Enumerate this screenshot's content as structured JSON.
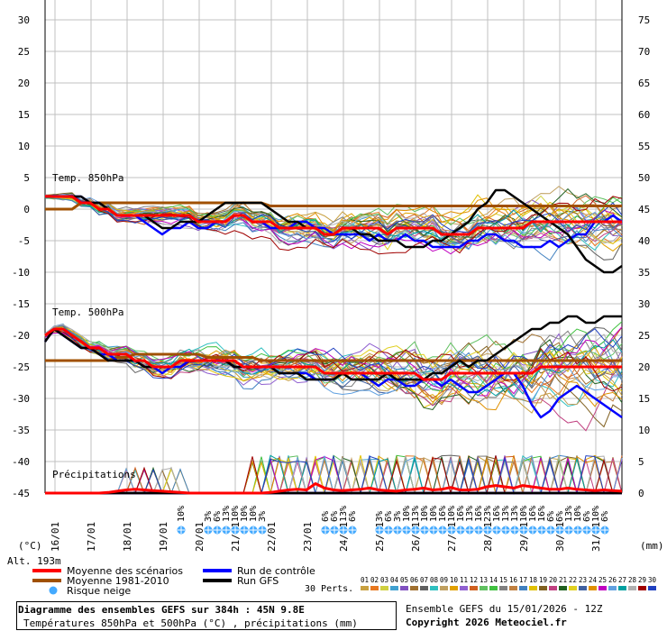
{
  "chart_data": {
    "type": "line",
    "title": "Diagramme des ensembles GEFS sur 384h : 45N 9.8E",
    "subtitle": "Températures 850hPa et 500hPa (°C) , précipitations (mm)",
    "ensemble_label": "Ensemble GEFS du 15/01/2026 - 12Z",
    "copyright": "Copyright 2026 Meteociel.fr",
    "altitude": "Alt. 193m",
    "left_unit": "(°C)",
    "right_unit": "(mm)",
    "left_ticks": [
      "30",
      "25",
      "20",
      "15",
      "10",
      "5",
      "0",
      "-5",
      "-10",
      "-15",
      "-20",
      "-25",
      "-30",
      "-35",
      "-40",
      "-45"
    ],
    "right_ticks": [
      "75",
      "70",
      "65",
      "60",
      "55",
      "50",
      "45",
      "40",
      "35",
      "30",
      "25",
      "20",
      "15",
      "10",
      "5",
      "0"
    ],
    "x_ticks": [
      "16/01",
      "17/01",
      "18/01",
      "19/01",
      "20/01",
      "21/01",
      "22/01",
      "23/01",
      "24/01",
      "25/01",
      "26/01",
      "27/01",
      "28/01",
      "29/01",
      "30/01",
      "31/01"
    ],
    "section_labels": {
      "t850": "Temp. 850hPa",
      "t500": "Temp. 500hPa",
      "precip": "Précipitations"
    },
    "ylim_left": [
      -45,
      30
    ],
    "ylim_right": [
      0,
      75
    ],
    "x_range_hours": [
      0,
      384
    ],
    "colors": {
      "mean": "#ff0000",
      "climo": "#a05000",
      "control": "#0000ff",
      "gfs": "#000000",
      "snow": "#44aaff",
      "grid": "#c0c0c0"
    },
    "series": [
      {
        "name": "Moyenne des scénarios",
        "group": "t850",
        "values": [
          2,
          2,
          2,
          2,
          1,
          1,
          0,
          0,
          -1,
          -1,
          -1,
          -1,
          -1,
          -1,
          -1,
          -1,
          -1,
          -2,
          -2,
          -2,
          -2,
          -1,
          -1,
          -2,
          -2,
          -2,
          -3,
          -3,
          -3,
          -3,
          -3,
          -4,
          -4,
          -3,
          -3,
          -3,
          -3,
          -3,
          -4,
          -3,
          -3,
          -3,
          -3,
          -3,
          -4,
          -4,
          -4,
          -4,
          -3,
          -3,
          -3,
          -3,
          -3,
          -3,
          -2,
          -2,
          -2,
          -2,
          -2,
          -2,
          -2,
          -2,
          -2,
          -2,
          -2
        ]
      },
      {
        "name": "Moyenne 1981-2010",
        "group": "t850",
        "values": [
          0,
          0,
          0,
          0,
          1,
          1,
          1,
          1,
          1,
          1,
          1,
          1,
          1,
          1,
          1,
          1,
          1,
          1,
          1,
          1,
          1,
          1,
          1,
          1,
          1,
          0.5,
          0.5,
          0.5,
          0.5,
          0.5,
          0.5,
          0.5,
          0.5,
          0.5,
          0.5,
          0.5,
          0.5,
          0.5,
          0.5,
          0.5,
          0.5,
          0.5,
          0.5,
          0.5,
          0.5,
          0.5,
          0.5,
          0.5,
          0.5,
          0.5,
          0.5,
          0.5,
          0.5,
          0.5,
          0.5,
          0.5,
          0.5,
          0.5,
          0.5,
          0.5,
          0.5,
          0.5,
          0.5,
          0.5,
          0.5
        ]
      },
      {
        "name": "Run de contrôle",
        "group": "t850",
        "values": [
          2,
          2,
          2,
          2,
          2,
          1,
          1,
          0,
          -1,
          -1,
          -1,
          -2,
          -3,
          -4,
          -3,
          -3,
          -2,
          -3,
          -3,
          -2,
          -2,
          -1,
          -1,
          -2,
          -2,
          -3,
          -3,
          -3,
          -2,
          -2,
          -3,
          -3,
          -4,
          -4,
          -4,
          -4,
          -5,
          -4,
          -5,
          -5,
          -4,
          -5,
          -5,
          -6,
          -6,
          -6,
          -6,
          -5,
          -5,
          -4,
          -4,
          -5,
          -5,
          -6,
          -6,
          -6,
          -5,
          -6,
          -5,
          -4,
          -4,
          -2,
          -2,
          -1,
          -2
        ]
      },
      {
        "name": "Run GFS",
        "group": "t850",
        "values": [
          2,
          2,
          2,
          2,
          2,
          1,
          1,
          0,
          -1,
          -1,
          -1,
          -1,
          -2,
          -3,
          -3,
          -2,
          -2,
          -2,
          -1,
          0,
          1,
          1,
          1,
          1,
          1,
          0,
          -1,
          -2,
          -2,
          -3,
          -3,
          -4,
          -4,
          -3,
          -3,
          -4,
          -4,
          -5,
          -5,
          -5,
          -6,
          -6,
          -6,
          -5,
          -5,
          -4,
          -3,
          -2,
          0,
          1,
          3,
          3,
          2,
          1,
          0,
          -1,
          -2,
          -3,
          -4,
          -6,
          -8,
          -9,
          -10,
          -10,
          -9
        ]
      },
      {
        "name": "Moyenne des scénarios",
        "group": "t500",
        "values": [
          -20,
          -19,
          -19,
          -20,
          -21,
          -22,
          -22,
          -23,
          -23,
          -23,
          -24,
          -24,
          -25,
          -25,
          -25,
          -24,
          -24,
          -24,
          -24,
          -24,
          -24,
          -24,
          -25,
          -25,
          -25,
          -25,
          -25,
          -25,
          -25,
          -25,
          -25,
          -26,
          -26,
          -26,
          -26,
          -26,
          -26,
          -26,
          -26,
          -26,
          -26,
          -26,
          -27,
          -27,
          -27,
          -26,
          -26,
          -26,
          -26,
          -26,
          -26,
          -26,
          -26,
          -26,
          -26,
          -25,
          -25,
          -25,
          -25,
          -25,
          -25,
          -25,
          -25,
          -25,
          -25
        ]
      },
      {
        "name": "Moyenne 1981-2010",
        "group": "t500",
        "values": [
          -24,
          -24,
          -24,
          -24,
          -24,
          -24,
          -24,
          -24,
          -23.5,
          -23.5,
          -23,
          -23,
          -23,
          -23,
          -23,
          -23,
          -23,
          -23,
          -23.5,
          -23.5,
          -23.5,
          -23.5,
          -23.5,
          -23.5,
          -24,
          -24,
          -24,
          -24,
          -24,
          -24,
          -24,
          -24,
          -24,
          -24,
          -24,
          -24,
          -24,
          -24,
          -24,
          -24,
          -24,
          -24,
          -24,
          -24,
          -24,
          -24,
          -24,
          -24,
          -24,
          -24,
          -24,
          -24,
          -24,
          -24,
          -24,
          -24,
          -24,
          -24,
          -24,
          -24,
          -24,
          -24,
          -24,
          -24,
          -24
        ]
      },
      {
        "name": "Run de contrôle",
        "group": "t500",
        "values": [
          -21,
          -19,
          -20,
          -21,
          -22,
          -22,
          -23,
          -23,
          -24,
          -24,
          -24,
          -25,
          -25,
          -26,
          -25,
          -25,
          -24,
          -24,
          -24,
          -24,
          -24,
          -25,
          -25,
          -25,
          -25,
          -25,
          -26,
          -26,
          -26,
          -26,
          -27,
          -27,
          -27,
          -26,
          -26,
          -26,
          -27,
          -28,
          -27,
          -27,
          -28,
          -28,
          -27,
          -27,
          -28,
          -27,
          -28,
          -29,
          -29,
          -28,
          -27,
          -26,
          -26,
          -28,
          -31,
          -33,
          -32,
          -30,
          -29,
          -28,
          -29,
          -30,
          -31,
          -32,
          -33
        ]
      },
      {
        "name": "Run GFS",
        "group": "t500",
        "values": [
          -21,
          -19,
          -20,
          -21,
          -22,
          -22,
          -23,
          -24,
          -24,
          -24,
          -24,
          -25,
          -25,
          -25,
          -25,
          -24,
          -24,
          -24,
          -24,
          -24,
          -24,
          -25,
          -25,
          -25,
          -25,
          -25,
          -26,
          -26,
          -26,
          -27,
          -27,
          -27,
          -27,
          -26,
          -27,
          -27,
          -27,
          -27,
          -26,
          -27,
          -27,
          -27,
          -27,
          -26,
          -26,
          -25,
          -24,
          -25,
          -24,
          -24,
          -23,
          -22,
          -21,
          -20,
          -19,
          -19,
          -18,
          -18,
          -17,
          -17,
          -18,
          -18,
          -17,
          -17,
          -17
        ]
      },
      {
        "name": "Moyenne des scénarios",
        "group": "precip",
        "values": [
          0,
          0,
          0,
          0,
          0,
          0,
          0,
          0.1,
          0.3,
          0.5,
          0.6,
          0.5,
          0.4,
          0.3,
          0.2,
          0.1,
          0,
          0,
          0,
          0,
          0,
          0,
          0,
          0,
          0,
          0.1,
          0.3,
          0.5,
          0.6,
          0.5,
          1.5,
          0.8,
          0.5,
          0.4,
          0.5,
          0.6,
          0.8,
          0.5,
          0.4,
          0.3,
          0.5,
          0.6,
          0.8,
          0.5,
          0.6,
          0.9,
          0.5,
          0.5,
          0.6,
          1,
          1.2,
          1,
          0.8,
          1.2,
          1,
          0.8,
          0.6,
          0.6,
          0.8,
          0.6,
          0.5,
          0.4,
          0.5,
          0.4,
          0.3
        ]
      },
      {
        "name": "Moyenne 1981-2010",
        "group": "precip",
        "values": [
          0,
          0,
          0,
          0,
          0,
          0,
          0,
          0,
          0,
          0,
          0,
          0,
          0,
          0,
          0,
          0,
          0,
          0,
          0,
          0,
          0,
          0,
          0,
          0,
          0,
          0,
          0,
          0,
          0,
          0,
          0,
          0,
          0,
          0,
          0,
          0,
          0,
          0,
          0,
          0,
          0,
          0,
          0,
          0,
          0,
          0,
          0,
          0,
          0,
          0,
          0,
          0,
          0,
          0,
          0,
          0,
          0,
          0,
          0,
          0,
          0,
          0,
          0,
          0,
          0
        ]
      },
      {
        "name": "Run de contrôle",
        "group": "precip",
        "values": [
          0,
          0,
          0,
          0,
          0,
          0,
          0,
          0,
          0,
          0,
          0,
          0,
          0,
          0,
          0,
          0,
          0,
          0,
          0,
          0,
          0,
          0,
          0,
          0,
          0,
          0,
          0,
          0,
          0,
          0,
          0,
          0,
          0,
          0,
          0,
          0,
          0,
          0,
          0,
          0,
          0,
          0,
          0,
          0,
          0,
          0,
          0,
          0,
          0,
          0,
          0,
          0,
          0,
          0,
          0,
          0,
          0,
          0,
          0,
          0,
          0,
          0,
          0,
          0,
          0
        ]
      },
      {
        "name": "Run GFS",
        "group": "precip",
        "values": [
          0,
          0,
          0,
          0,
          0,
          0,
          0,
          0,
          0,
          0,
          0,
          0,
          0,
          0,
          0,
          0,
          0,
          0,
          0,
          0,
          0,
          0,
          0,
          0,
          0,
          0,
          0,
          0,
          0,
          0,
          0,
          0,
          0,
          0,
          0,
          0,
          0,
          0,
          0,
          0,
          0,
          0,
          0,
          0,
          0,
          0,
          0,
          0,
          0,
          0,
          0,
          0,
          0,
          0,
          0,
          0,
          0,
          0,
          0,
          0,
          0,
          0,
          0,
          0,
          0
        ]
      }
    ],
    "snow_risk": [
      {
        "x": "19/01 12h",
        "label": "10%"
      },
      {
        "x": "20/01 06h",
        "label": "3%"
      },
      {
        "x": "20/01 12h",
        "label": "6%"
      },
      {
        "x": "20/01 18h",
        "label": "13%"
      },
      {
        "x": "21/01 00h",
        "label": "10%"
      },
      {
        "x": "21/01 06h",
        "label": "10%"
      },
      {
        "x": "21/01 12h",
        "label": "10%"
      },
      {
        "x": "21/01 18h",
        "label": "3%"
      },
      {
        "x": "23/01 12h",
        "label": "6%"
      },
      {
        "x": "23/01 18h",
        "label": "6%"
      },
      {
        "x": "24/01 00h",
        "label": "13%"
      },
      {
        "x": "24/01 06h",
        "label": "6%"
      },
      {
        "x": "25/01 00h",
        "label": "3%"
      },
      {
        "x": "25/01 06h",
        "label": "6%"
      },
      {
        "x": "25/01 12h",
        "label": "3%"
      },
      {
        "x": "25/01 18h",
        "label": "10%"
      },
      {
        "x": "26/01 00h",
        "label": "13%"
      },
      {
        "x": "26/01 06h",
        "label": "10%"
      },
      {
        "x": "26/01 12h",
        "label": "10%"
      },
      {
        "x": "26/01 18h",
        "label": "16%"
      },
      {
        "x": "27/01 00h",
        "label": "10%"
      },
      {
        "x": "27/01 06h",
        "label": "16%"
      },
      {
        "x": "27/01 12h",
        "label": "13%"
      },
      {
        "x": "27/01 18h",
        "label": "16%"
      },
      {
        "x": "28/01 00h",
        "label": "23%"
      },
      {
        "x": "28/01 06h",
        "label": "16%"
      },
      {
        "x": "28/01 12h",
        "label": "13%"
      },
      {
        "x": "28/01 18h",
        "label": "13%"
      },
      {
        "x": "29/01 00h",
        "label": "10%"
      },
      {
        "x": "29/01 06h",
        "label": "16%"
      },
      {
        "x": "29/01 12h",
        "label": "16%"
      },
      {
        "x": "29/01 18h",
        "label": "6%"
      },
      {
        "x": "30/01 00h",
        "label": "6%"
      },
      {
        "x": "30/01 06h",
        "label": "13%"
      },
      {
        "x": "30/01 12h",
        "label": "10%"
      },
      {
        "x": "30/01 18h",
        "label": "6%"
      },
      {
        "x": "31/01 00h",
        "label": "10%"
      },
      {
        "x": "31/01 06h",
        "label": "6%"
      }
    ],
    "legend": [
      {
        "label": "Moyenne des scénarios",
        "color": "#ff0000"
      },
      {
        "label": "Moyenne 1981-2010",
        "color": "#a05000"
      },
      {
        "label": "Risque neige",
        "color": "#44aaff"
      },
      {
        "label": "Run de contrôle",
        "color": "#0000ff"
      },
      {
        "label": "Run GFS",
        "color": "#000000"
      }
    ],
    "perts_label": "30 Perts.",
    "perturbations": [
      {
        "id": "01",
        "color": "#c8a040"
      },
      {
        "id": "02",
        "color": "#e87820"
      },
      {
        "id": "03",
        "color": "#d0d040"
      },
      {
        "id": "04",
        "color": "#40a0d0"
      },
      {
        "id": "05",
        "color": "#8050c0"
      },
      {
        "id": "06",
        "color": "#a07030"
      },
      {
        "id": "07",
        "color": "#606060"
      },
      {
        "id": "08",
        "color": "#30c0c0"
      },
      {
        "id": "09",
        "color": "#c0a060"
      },
      {
        "id": "10",
        "color": "#e0a000"
      },
      {
        "id": "11",
        "color": "#9060d0"
      },
      {
        "id": "12",
        "color": "#d06020"
      },
      {
        "id": "13",
        "color": "#60c060"
      },
      {
        "id": "14",
        "color": "#40c040"
      },
      {
        "id": "15",
        "color": "#808080"
      },
      {
        "id": "16",
        "color": "#c08040"
      },
      {
        "id": "17",
        "color": "#4080c0"
      },
      {
        "id": "18",
        "color": "#e0c000"
      },
      {
        "id": "19",
        "color": "#806020"
      },
      {
        "id": "20",
        "color": "#c04080"
      },
      {
        "id": "21",
        "color": "#206020"
      },
      {
        "id": "22",
        "color": "#e0d020"
      },
      {
        "id": "23",
        "color": "#4060a0"
      },
      {
        "id": "24",
        "color": "#e09000"
      },
      {
        "id": "25",
        "color": "#c000c0"
      },
      {
        "id": "26",
        "color": "#60a0e0"
      },
      {
        "id": "27",
        "color": "#00a0a0"
      },
      {
        "id": "28",
        "color": "#b0b0b0"
      },
      {
        "id": "29",
        "color": "#a00000"
      },
      {
        "id": "30",
        "color": "#2040c0"
      }
    ]
  }
}
